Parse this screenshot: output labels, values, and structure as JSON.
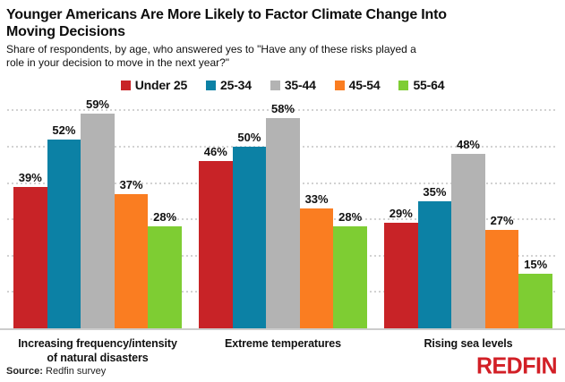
{
  "header": {
    "title": "Younger Americans Are More Likely to Factor Climate Change Into Moving Decisions",
    "subtitle": "Share of respondents, by age, who answered yes to \"Have any of these risks played a role in your decision to move in the next year?\""
  },
  "chart_data": {
    "type": "bar",
    "categories": [
      "Increasing frequency/intensity of natural disasters",
      "Extreme temperatures",
      "Rising sea levels"
    ],
    "series": [
      {
        "name": "Under 25",
        "color": "#c82327",
        "values": [
          39,
          46,
          29
        ]
      },
      {
        "name": "25-34",
        "color": "#0c81a5",
        "values": [
          52,
          50,
          35
        ]
      },
      {
        "name": "35-44",
        "color": "#b3b3b3",
        "values": [
          59,
          58,
          48
        ]
      },
      {
        "name": "45-54",
        "color": "#fa7d21",
        "values": [
          37,
          33,
          27
        ]
      },
      {
        "name": "55-64",
        "color": "#7ecd33",
        "values": [
          28,
          28,
          15
        ]
      }
    ],
    "value_suffix": "%",
    "ylim": [
      0,
      63.5
    ],
    "gridlines_pct": [
      10,
      20,
      30,
      40,
      50,
      60
    ],
    "grid": true,
    "legend_position": "top",
    "gridline_color": "#d2d2d2",
    "axis_color": "#cccccc"
  },
  "footer": {
    "source_label": "Source:",
    "source_text": " Redfin survey",
    "logo_text": "REDFIN",
    "logo_color": "#d21f26"
  }
}
